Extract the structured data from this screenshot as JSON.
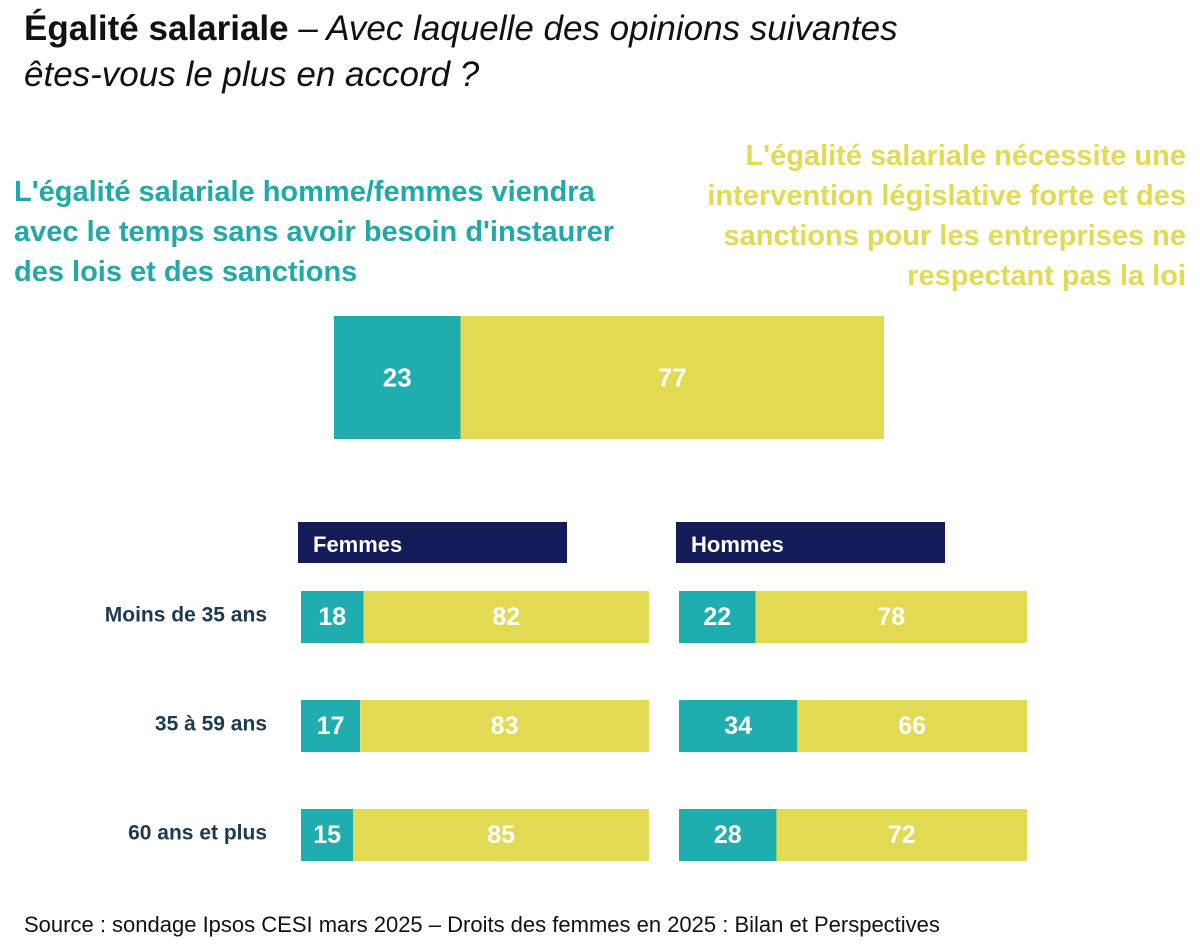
{
  "title": {
    "bold": "Égalité salariale",
    "italic_line1": " – Avec laquelle des opinions suivantes",
    "italic_line2": "êtes-vous le plus en accord ?"
  },
  "chart_data": {
    "type": "bar",
    "stacked": true,
    "orientation": "horizontal",
    "series": [
      {
        "name": "L'égalité salariale homme/femmes viendra avec le temps sans avoir besoin d'instaurer des lois et des sanctions",
        "color": "#1fadaf"
      },
      {
        "name": "L'égalité salariale nécessite une intervention législative forte et des sanctions pour les entreprises ne respectant pas la loi",
        "color": "#e2da52"
      }
    ],
    "total": {
      "values": [
        23,
        77
      ]
    },
    "panels": [
      {
        "label": "Femmes",
        "categories": [
          "Moins de 35 ans",
          "35 à 59 ans",
          "60 ans et plus"
        ],
        "series_values": [
          [
            18,
            17,
            15
          ],
          [
            82,
            83,
            85
          ]
        ]
      },
      {
        "label": "Hommes",
        "categories": [
          "Moins de 35 ans",
          "35 à 59 ans",
          "60 ans et plus"
        ],
        "series_values": [
          [
            22,
            34,
            28
          ],
          [
            78,
            66,
            72
          ]
        ]
      }
    ],
    "header_color": "#141b59",
    "row_label_color": "#1b3a52"
  },
  "source": "Source : sondage Ipsos CESI mars 2025 – Droits des femmes en 2025 : Bilan et Perspectives"
}
